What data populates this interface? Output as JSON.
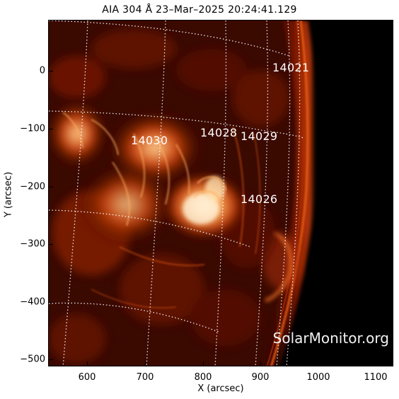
{
  "title": "AIA 304 Å 23–Mar–2025 20:24:41.129",
  "x_axis": {
    "label": "X (arcsec)",
    "ticks": [
      "600",
      "700",
      "800",
      "900",
      "1000",
      "1100"
    ]
  },
  "y_axis": {
    "label": "Y (arcsec)",
    "ticks": [
      "0",
      "−100",
      "−200",
      "−300",
      "−400",
      "−500"
    ]
  },
  "regions": [
    {
      "id": "14021",
      "label": "14021"
    },
    {
      "id": "14030",
      "label": "14030"
    },
    {
      "id": "14028",
      "label": "14028"
    },
    {
      "id": "14029",
      "label": "14029"
    },
    {
      "id": "14026",
      "label": "14026"
    }
  ],
  "watermark": "SolarMonitor.org",
  "colors": {
    "background": "#000000",
    "disk_dark": "#2a0500",
    "disk_mid": "#8a1a00",
    "active_bright": "#ffb060",
    "hot_core": "#fff4e0",
    "grid": "#ffffff"
  }
}
